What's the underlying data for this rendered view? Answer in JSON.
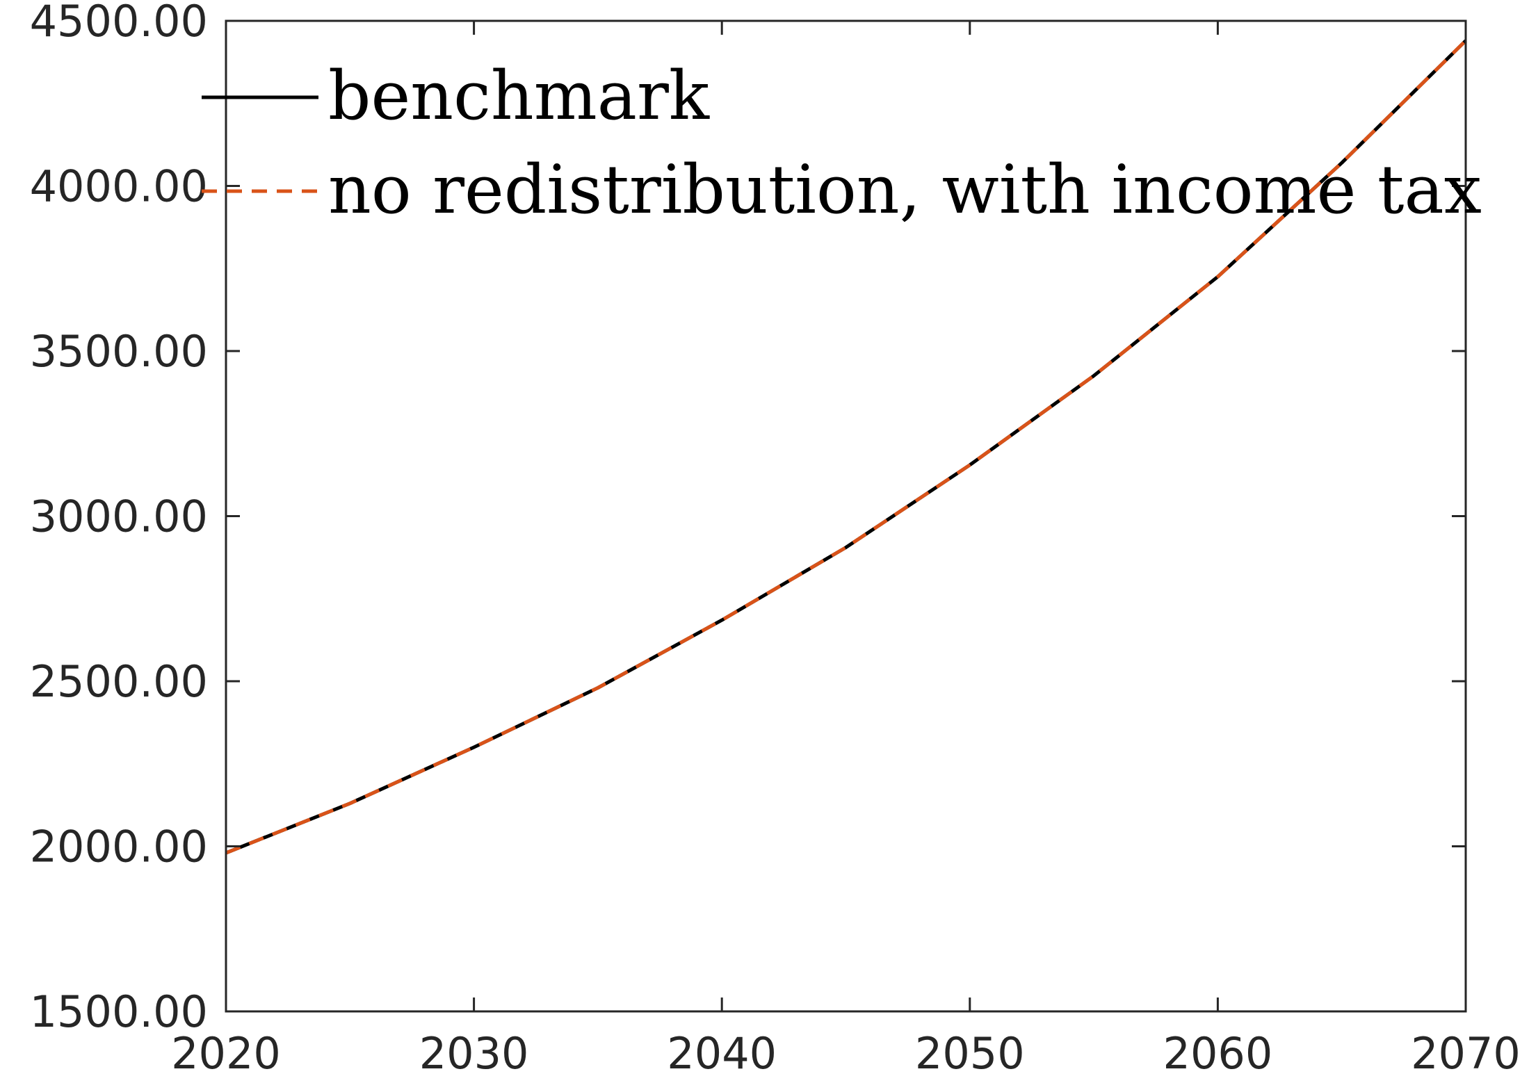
{
  "chart_data": {
    "type": "line",
    "title": "",
    "xlabel": "",
    "ylabel": "",
    "xlim": [
      2020,
      2070
    ],
    "ylim": [
      1500,
      4500
    ],
    "x_ticks": [
      2020,
      2030,
      2040,
      2050,
      2060,
      2070
    ],
    "x_tick_labels": [
      "2020",
      "2030",
      "2040",
      "2050",
      "2060",
      "2070"
    ],
    "y_ticks": [
      1500,
      2000,
      2500,
      3000,
      3500,
      4000,
      4500
    ],
    "y_tick_labels": [
      "1500.00",
      "2000.00",
      "2500.00",
      "3000.00",
      "3500.00",
      "4000.00",
      "4500.00"
    ],
    "grid": false,
    "legend_position": "top-left",
    "x": [
      2020,
      2025,
      2030,
      2035,
      2040,
      2045,
      2050,
      2055,
      2060,
      2065,
      2070
    ],
    "series": [
      {
        "name": "benchmark",
        "color": "#000000",
        "line_style": "solid",
        "values": [
          1980,
          2130,
          2300,
          2480,
          2685,
          2905,
          3155,
          3425,
          3725,
          4070,
          4440
        ]
      },
      {
        "name": "no redistribution, with income tax",
        "color": "#D95319",
        "line_style": "dashed",
        "values": [
          1980,
          2130,
          2300,
          2480,
          2685,
          2905,
          3155,
          3425,
          3725,
          4070,
          4440
        ]
      }
    ]
  }
}
